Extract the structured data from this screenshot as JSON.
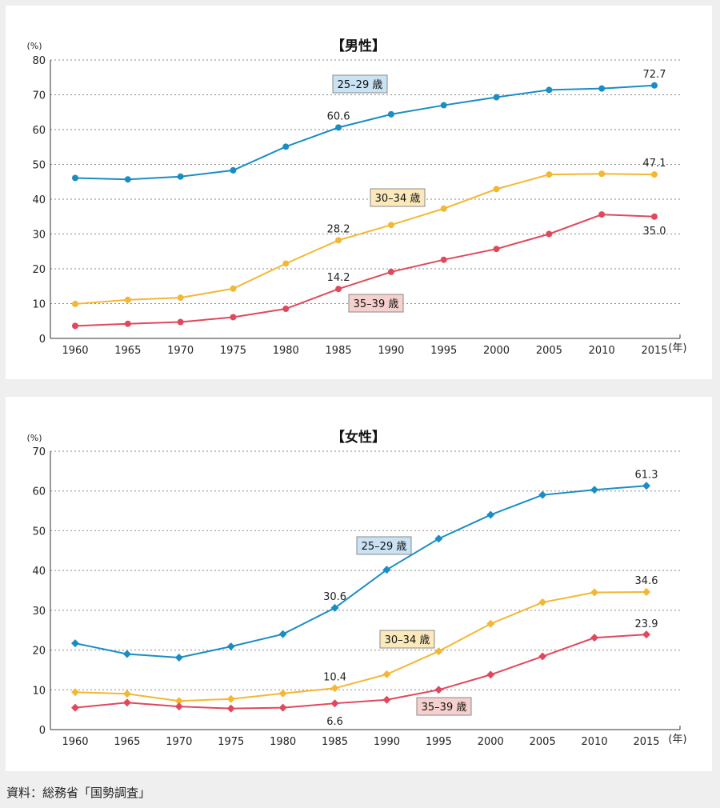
{
  "source": "資料：総務省「国勢調査」",
  "chart_data": [
    {
      "type": "line",
      "title": "【男性】",
      "y_unit": "(%)",
      "x_unit": "(年)",
      "ylim": [
        0,
        80
      ],
      "yticks": [
        0,
        10,
        20,
        30,
        40,
        50,
        60,
        70,
        80
      ],
      "grid": true,
      "marker": "circle",
      "x": [
        "1960",
        "1965",
        "1970",
        "1975",
        "1980",
        "1985",
        "1990",
        "1995",
        "2000",
        "2005",
        "2010",
        "2015"
      ],
      "series": [
        {
          "name": "25–29 歳",
          "color": "#1a8dc4",
          "label_bg": "#c9e3f4",
          "values": [
            46.1,
            45.7,
            46.5,
            48.3,
            55.1,
            60.6,
            64.4,
            67.0,
            69.3,
            71.4,
            71.8,
            72.7
          ],
          "data_labels": [
            {
              "index": 5,
              "text": "60.6"
            },
            {
              "index": 11,
              "text": "72.7"
            }
          ]
        },
        {
          "name": "30–34 歳",
          "color": "#f4b733",
          "label_bg": "#fbe9bc",
          "values": [
            9.9,
            11.1,
            11.7,
            14.3,
            21.5,
            28.2,
            32.6,
            37.3,
            42.9,
            47.1,
            47.3,
            47.1
          ],
          "data_labels": [
            {
              "index": 5,
              "text": "28.2"
            },
            {
              "index": 11,
              "text": "47.1"
            }
          ]
        },
        {
          "name": "35–39 歳",
          "color": "#e0485c",
          "label_bg": "#f6d0cd",
          "values": [
            3.6,
            4.2,
            4.7,
            6.1,
            8.5,
            14.2,
            19.1,
            22.6,
            25.7,
            30.0,
            35.6,
            35.0
          ],
          "data_labels": [
            {
              "index": 5,
              "text": "14.2"
            },
            {
              "index": 11,
              "text": "35.0"
            }
          ]
        }
      ]
    },
    {
      "type": "line",
      "title": "【女性】",
      "y_unit": "(%)",
      "x_unit": "(年)",
      "ylim": [
        0,
        70
      ],
      "yticks": [
        0,
        10,
        20,
        30,
        40,
        50,
        60,
        70
      ],
      "grid": true,
      "marker": "diamond",
      "x": [
        "1960",
        "1965",
        "1970",
        "1975",
        "1980",
        "1985",
        "1990",
        "1995",
        "2000",
        "2005",
        "2010",
        "2015"
      ],
      "series": [
        {
          "name": "25–29 歳",
          "color": "#1a8dc4",
          "label_bg": "#c9e3f4",
          "values": [
            21.7,
            19.0,
            18.1,
            20.9,
            24.0,
            30.6,
            40.2,
            48.0,
            54.0,
            59.0,
            60.3,
            61.3
          ],
          "data_labels": [
            {
              "index": 5,
              "text": "30.6"
            },
            {
              "index": 11,
              "text": "61.3"
            }
          ]
        },
        {
          "name": "30–34 歳",
          "color": "#f4b733",
          "label_bg": "#fbe9bc",
          "values": [
            9.4,
            9.0,
            7.2,
            7.7,
            9.1,
            10.4,
            13.9,
            19.7,
            26.6,
            32.0,
            34.5,
            34.6
          ],
          "data_labels": [
            {
              "index": 5,
              "text": "10.4"
            },
            {
              "index": 11,
              "text": "34.6"
            }
          ]
        },
        {
          "name": "35–39 歳",
          "color": "#e0485c",
          "label_bg": "#f6d0cd",
          "values": [
            5.5,
            6.8,
            5.8,
            5.3,
            5.5,
            6.6,
            7.5,
            10.0,
            13.8,
            18.4,
            23.1,
            23.9
          ],
          "data_labels": [
            {
              "index": 5,
              "text": "6.6"
            },
            {
              "index": 11,
              "text": "23.9"
            }
          ]
        }
      ]
    }
  ]
}
